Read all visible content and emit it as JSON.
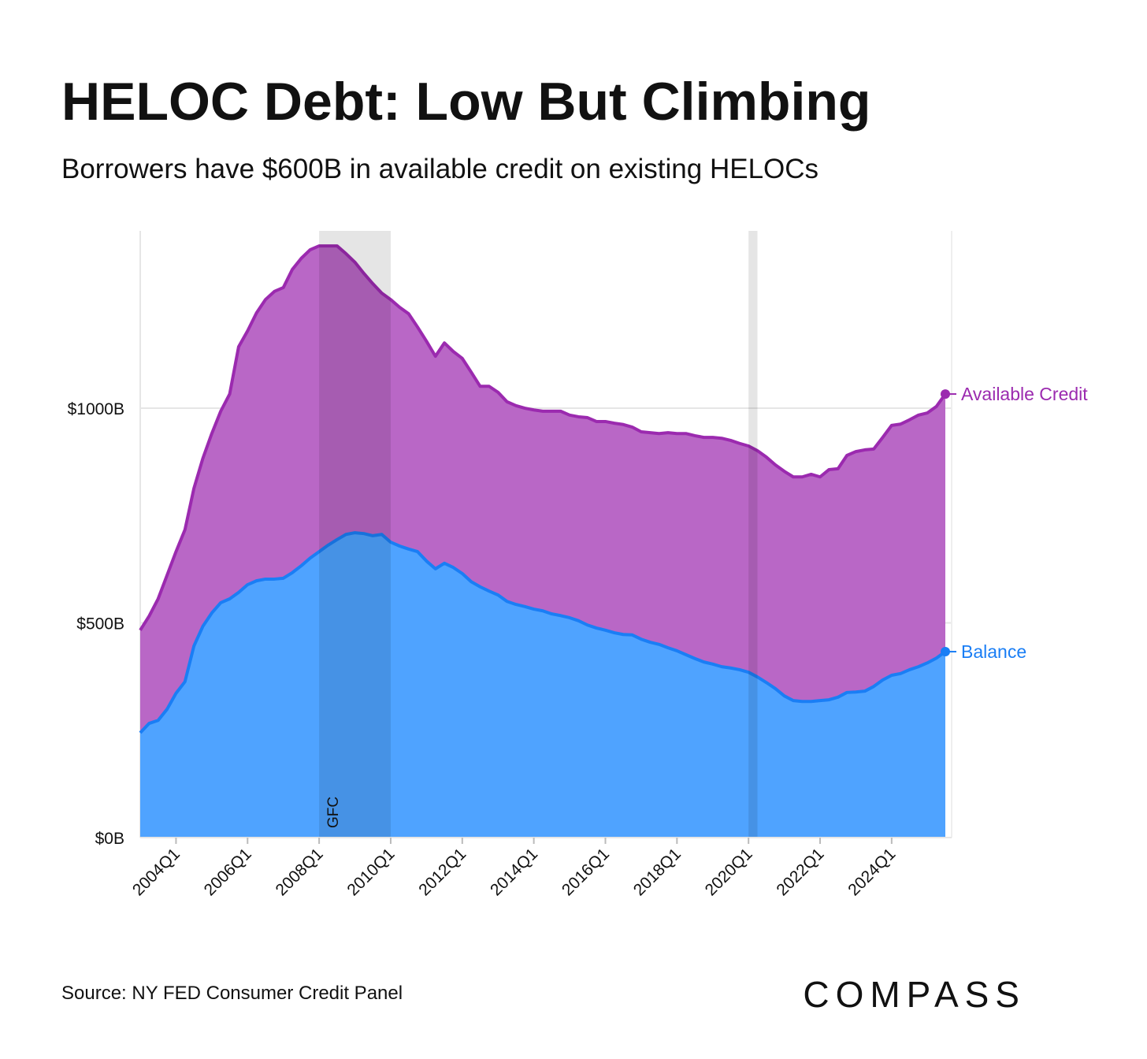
{
  "chart_data": {
    "type": "stacked-area",
    "title": "HELOC Debt: Low But Climbing",
    "subtitle": "Borrowers have $600B in available credit on existing HELOCs",
    "source": "Source: NY FED Consumer Credit Panel",
    "logo": "COMPASS",
    "categories": [
      null,
      null,
      null,
      null,
      "2004Q1",
      null,
      null,
      null,
      null,
      null,
      null,
      null,
      "2006Q1",
      null,
      null,
      null,
      null,
      null,
      null,
      null,
      "2008Q1",
      null,
      null,
      null,
      null,
      null,
      null,
      null,
      "2010Q1",
      null,
      null,
      null,
      null,
      null,
      null,
      null,
      "2012Q1",
      null,
      null,
      null,
      null,
      null,
      null,
      null,
      "2014Q1",
      null,
      null,
      null,
      null,
      null,
      null,
      null,
      "2016Q1",
      null,
      null,
      null,
      null,
      null,
      null,
      null,
      "2018Q1",
      null,
      null,
      null,
      null,
      null,
      null,
      null,
      "2020Q1",
      null,
      null,
      null,
      null,
      null,
      null,
      null,
      "2022Q1",
      null,
      null,
      null,
      null,
      null,
      null,
      null,
      "2024Q1",
      null,
      null,
      null,
      null,
      null,
      null
    ],
    "series": [
      {
        "name": "Balance",
        "color": "#1a7ef5",
        "fill": "#4fa3ff",
        "values": [
          244,
          266,
          273,
          299,
          336,
          363,
          446,
          492,
          523,
          547,
          556,
          571,
          589,
          598,
          602,
          602,
          604,
          617,
          633,
          651,
          666,
          681,
          694,
          706,
          710,
          708,
          703,
          706,
          688,
          679,
          672,
          666,
          644,
          626,
          639,
          629,
          615,
          596,
          584,
          574,
          565,
          550,
          543,
          538,
          532,
          528,
          521,
          517,
          512,
          505,
          495,
          488,
          483,
          477,
          473,
          472,
          462,
          455,
          450,
          442,
          435,
          426,
          417,
          409,
          404,
          398,
          395,
          391,
          385,
          374,
          361,
          347,
          330,
          319,
          317,
          317,
          319,
          321,
          327,
          338,
          339,
          341,
          352,
          367,
          378,
          382,
          391,
          398,
          407,
          418,
          433
        ]
      },
      {
        "name": "Available Credit",
        "color": "#9b2aaf",
        "fill": "#b967c6",
        "values": [
          239,
          250,
          283,
          312,
          330,
          354,
          367,
          391,
          418,
          446,
          477,
          572,
          591,
          624,
          651,
          670,
          677,
          706,
          716,
          718,
          712,
          697,
          684,
          654,
          630,
          606,
          587,
          562,
          565,
          556,
          548,
          523,
          512,
          495,
          513,
          503,
          501,
          488,
          467,
          477,
          472,
          465,
          463,
          462,
          464,
          465,
          472,
          476,
          472,
          475,
          483,
          481,
          486,
          488,
          489,
          484,
          483,
          488,
          491,
          501,
          506,
          515,
          519,
          523,
          528,
          532,
          530,
          527,
          527,
          527,
          525,
          521,
          523,
          521,
          523,
          529,
          521,
          536,
          532,
          552,
          560,
          562,
          553,
          565,
          582,
          581,
          582,
          586,
          582,
          586,
          600
        ]
      }
    ],
    "stacked": true,
    "ylim": [
      0,
      1413
    ],
    "yticks": [
      {
        "value": 0,
        "label": "$0B"
      },
      {
        "value": 500,
        "label": "$500B"
      },
      {
        "value": 1000,
        "label": "$1000B"
      }
    ],
    "grid": true,
    "shaded": [
      {
        "from": 20,
        "to": 28,
        "label": "GFC"
      },
      {
        "from": 68,
        "to": 69
      }
    ]
  }
}
